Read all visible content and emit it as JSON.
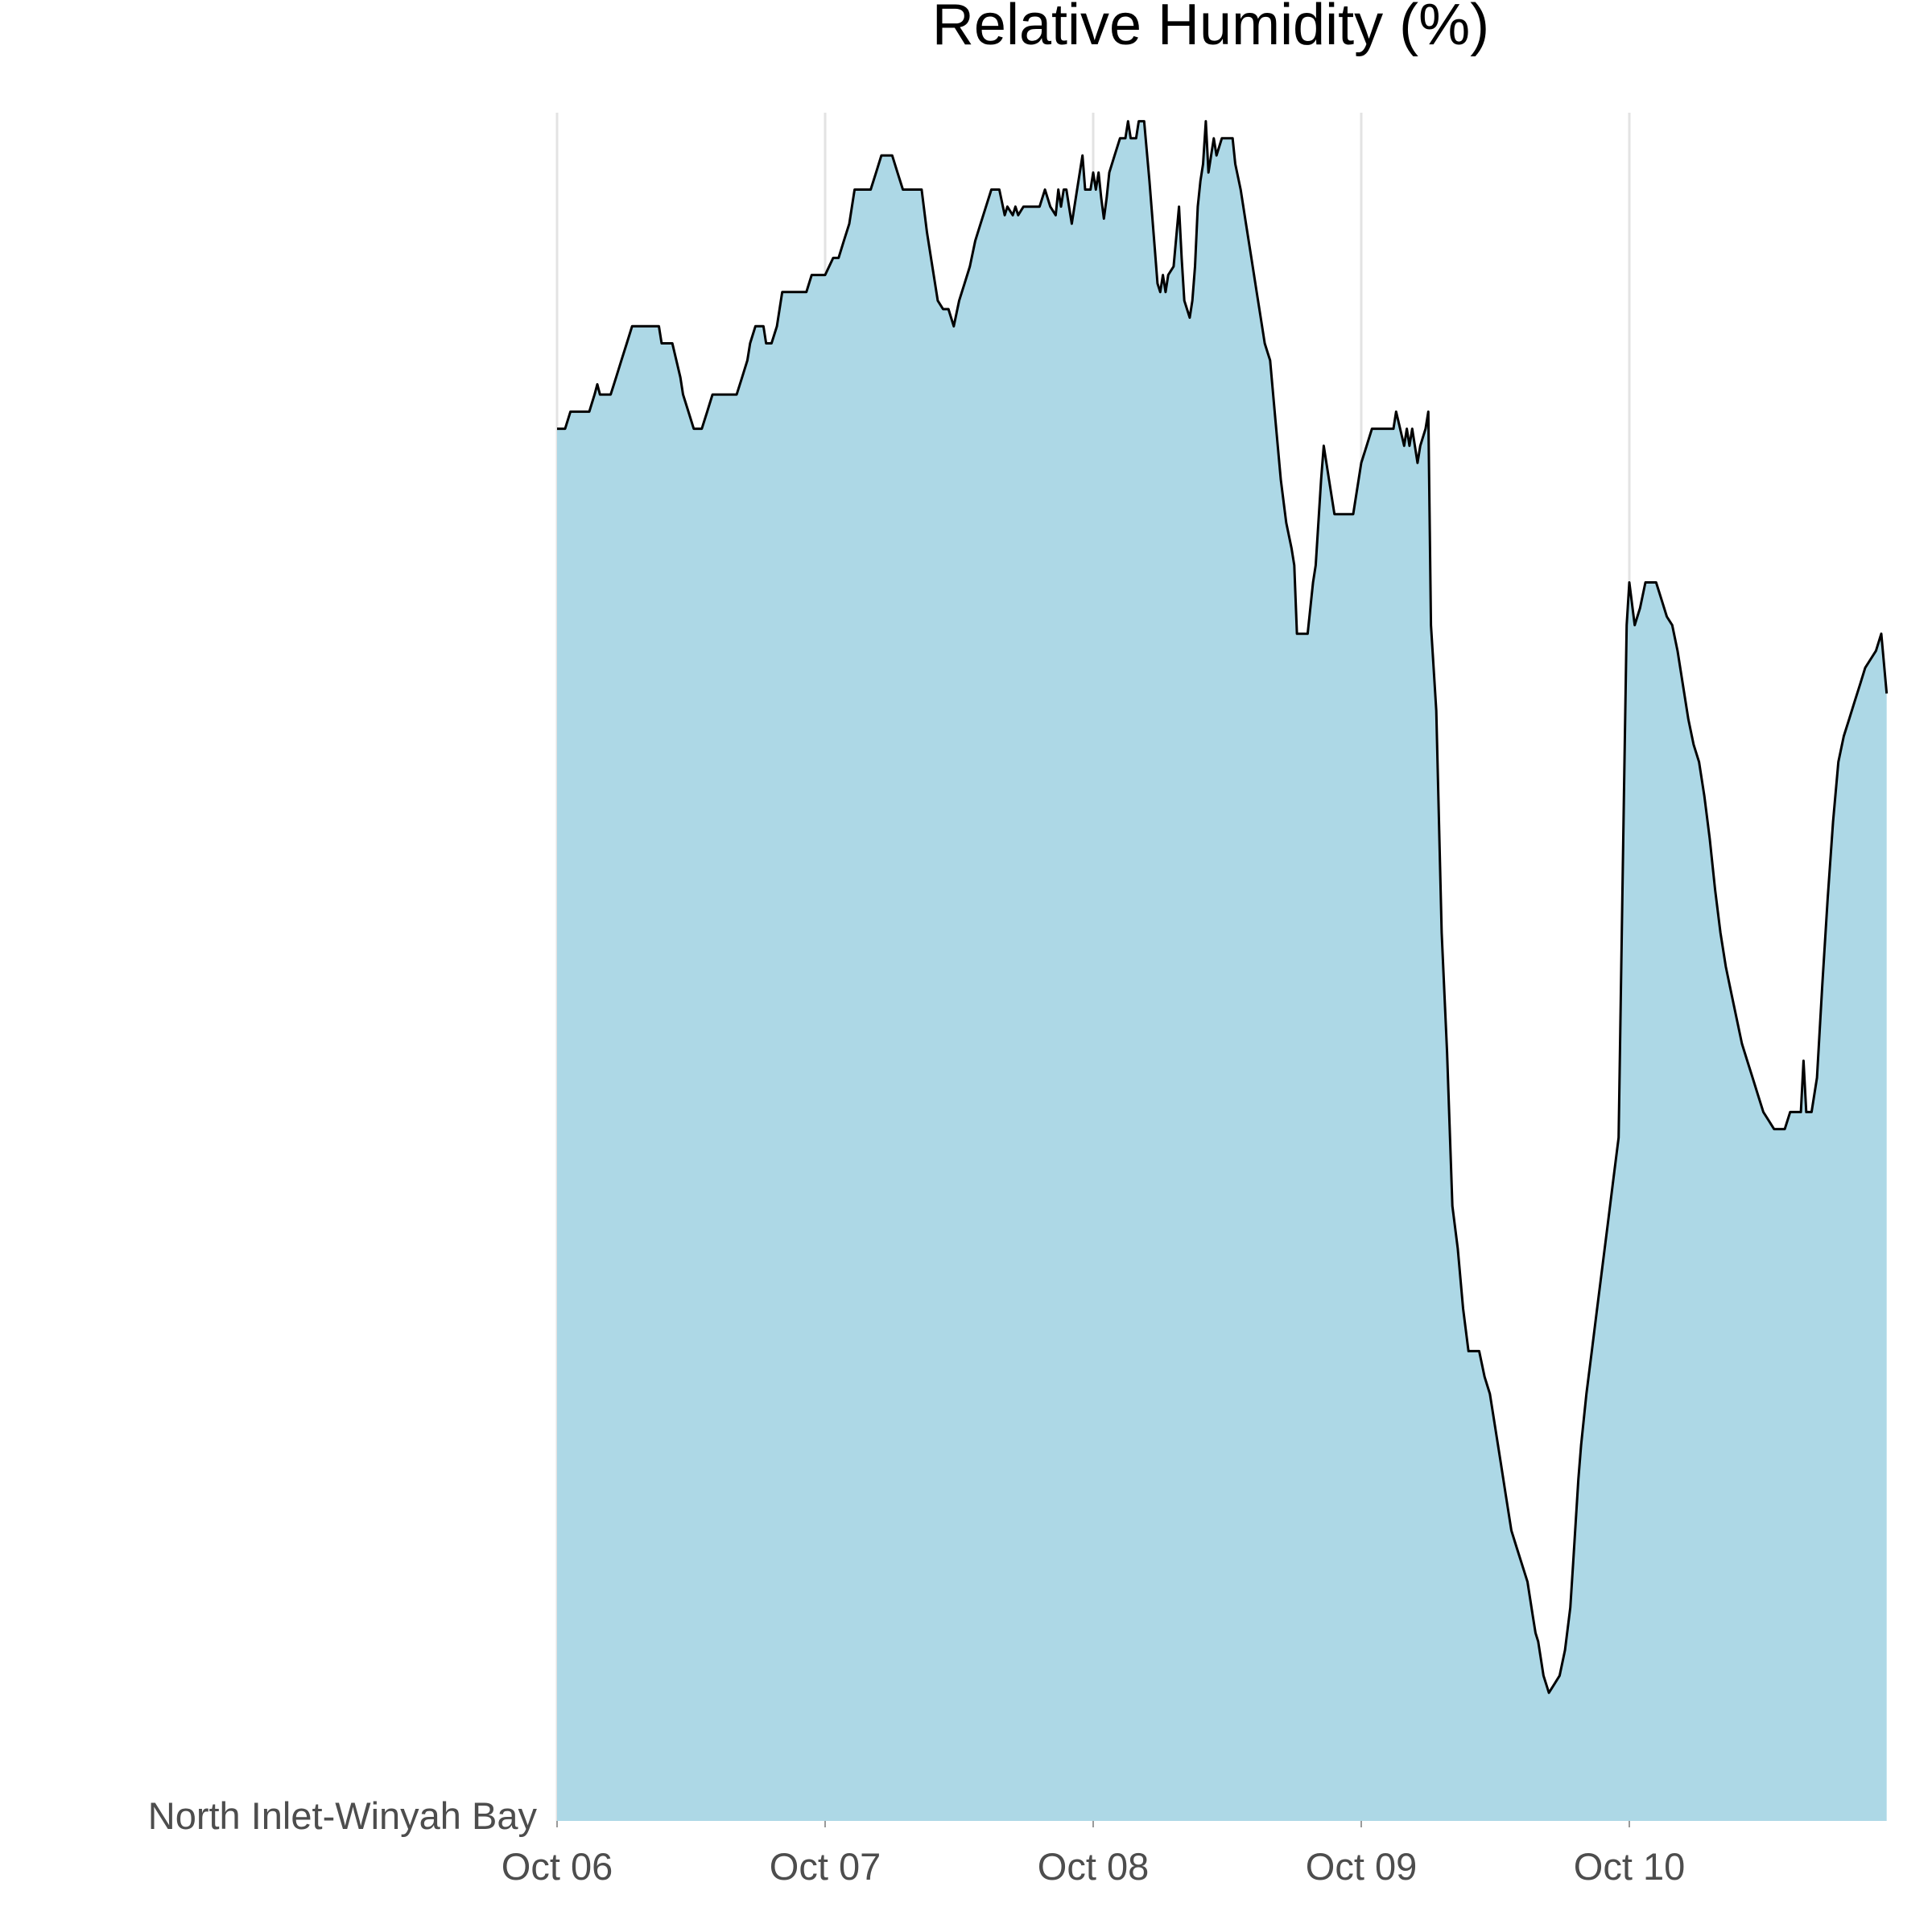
{
  "chart_data": {
    "type": "area",
    "title": "Relative Humidity (%)",
    "xlabel": "",
    "ylabel": "",
    "series_label": "North Inlet-Winyah Bay",
    "x_unit": "days since Oct 06 00:00",
    "x_range": [
      0,
      4.96
    ],
    "ylim": [
      0,
      100
    ],
    "grid": "vertical",
    "x_ticks": [
      {
        "value": 0,
        "label": "Oct 06"
      },
      {
        "value": 1,
        "label": "Oct 07"
      },
      {
        "value": 2,
        "label": "Oct 08"
      },
      {
        "value": 3,
        "label": "Oct 09"
      },
      {
        "value": 4,
        "label": "Oct 10"
      }
    ],
    "colors": {
      "fill": "#add8e6",
      "line": "#000000",
      "grid": "#e3e3e3"
    },
    "points": [
      [
        0.0,
        81.5
      ],
      [
        0.03,
        81.5
      ],
      [
        0.05,
        82.5
      ],
      [
        0.12,
        82.5
      ],
      [
        0.14,
        83.5
      ],
      [
        0.15,
        84.1
      ],
      [
        0.16,
        83.5
      ],
      [
        0.2,
        83.5
      ],
      [
        0.22,
        84.5
      ],
      [
        0.24,
        85.5
      ],
      [
        0.26,
        86.5
      ],
      [
        0.28,
        87.5
      ],
      [
        0.35,
        87.5
      ],
      [
        0.38,
        87.5
      ],
      [
        0.39,
        86.5
      ],
      [
        0.43,
        86.5
      ],
      [
        0.46,
        84.5
      ],
      [
        0.47,
        83.5
      ],
      [
        0.49,
        82.5
      ],
      [
        0.51,
        81.5
      ],
      [
        0.54,
        81.5
      ],
      [
        0.56,
        82.5
      ],
      [
        0.58,
        83.5
      ],
      [
        0.67,
        83.5
      ],
      [
        0.69,
        84.5
      ],
      [
        0.71,
        85.5
      ],
      [
        0.72,
        86.5
      ],
      [
        0.74,
        87.5
      ],
      [
        0.77,
        87.5
      ],
      [
        0.78,
        86.5
      ],
      [
        0.8,
        86.5
      ],
      [
        0.82,
        87.5
      ],
      [
        0.84,
        89.5
      ],
      [
        0.89,
        89.5
      ],
      [
        0.93,
        89.5
      ],
      [
        0.95,
        90.5
      ],
      [
        1.0,
        90.5
      ],
      [
        1.03,
        91.5
      ],
      [
        1.05,
        91.5
      ],
      [
        1.07,
        92.5
      ],
      [
        1.09,
        93.5
      ],
      [
        1.11,
        95.5
      ],
      [
        1.15,
        95.5
      ],
      [
        1.17,
        95.5
      ],
      [
        1.19,
        96.5
      ],
      [
        1.21,
        97.5
      ],
      [
        1.25,
        97.5
      ],
      [
        1.27,
        96.5
      ],
      [
        1.29,
        95.5
      ],
      [
        1.36,
        95.5
      ],
      [
        1.38,
        93.0
      ],
      [
        1.4,
        91.0
      ],
      [
        1.42,
        89.0
      ],
      [
        1.44,
        88.5
      ],
      [
        1.46,
        88.5
      ],
      [
        1.48,
        87.5
      ],
      [
        1.5,
        89.0
      ],
      [
        1.52,
        90.0
      ],
      [
        1.54,
        91.0
      ],
      [
        1.56,
        92.5
      ],
      [
        1.58,
        93.5
      ],
      [
        1.6,
        94.5
      ],
      [
        1.62,
        95.5
      ],
      [
        1.65,
        95.5
      ],
      [
        1.67,
        94.0
      ],
      [
        1.68,
        94.5
      ],
      [
        1.7,
        94.0
      ],
      [
        1.71,
        94.5
      ],
      [
        1.72,
        94.0
      ],
      [
        1.74,
        94.5
      ],
      [
        1.8,
        94.5
      ],
      [
        1.82,
        95.5
      ],
      [
        1.84,
        94.5
      ],
      [
        1.86,
        94.0
      ],
      [
        1.87,
        95.5
      ],
      [
        1.88,
        94.5
      ],
      [
        1.89,
        95.5
      ],
      [
        1.9,
        95.5
      ],
      [
        1.91,
        94.5
      ],
      [
        1.92,
        93.5
      ],
      [
        1.93,
        94.5
      ],
      [
        1.94,
        95.5
      ],
      [
        1.96,
        97.5
      ],
      [
        1.97,
        95.5
      ],
      [
        1.99,
        95.5
      ],
      [
        2.0,
        96.5
      ],
      [
        2.01,
        95.5
      ],
      [
        2.02,
        96.5
      ],
      [
        2.03,
        95.0
      ],
      [
        2.04,
        93.8
      ],
      [
        2.05,
        95.0
      ],
      [
        2.06,
        96.5
      ],
      [
        2.08,
        97.5
      ],
      [
        2.1,
        98.5
      ],
      [
        2.12,
        98.5
      ],
      [
        2.13,
        99.5
      ],
      [
        2.14,
        98.5
      ],
      [
        2.16,
        98.5
      ],
      [
        2.17,
        99.5
      ],
      [
        2.19,
        99.5
      ],
      [
        2.21,
        96.0
      ],
      [
        2.23,
        92.0
      ],
      [
        2.24,
        90.0
      ],
      [
        2.25,
        89.5
      ],
      [
        2.26,
        90.5
      ],
      [
        2.27,
        89.5
      ],
      [
        2.28,
        90.5
      ],
      [
        2.3,
        91.0
      ],
      [
        2.32,
        94.5
      ],
      [
        2.33,
        91.5
      ],
      [
        2.34,
        89.0
      ],
      [
        2.36,
        88.0
      ],
      [
        2.37,
        89.0
      ],
      [
        2.38,
        91.0
      ],
      [
        2.39,
        94.5
      ],
      [
        2.4,
        96.0
      ],
      [
        2.41,
        97.0
      ],
      [
        2.42,
        99.5
      ],
      [
        2.43,
        96.5
      ],
      [
        2.44,
        97.5
      ],
      [
        2.45,
        98.5
      ],
      [
        2.46,
        97.5
      ],
      [
        2.48,
        98.5
      ],
      [
        2.52,
        98.5
      ],
      [
        2.53,
        97.0
      ],
      [
        2.55,
        95.5
      ],
      [
        2.57,
        93.5
      ],
      [
        2.59,
        91.5
      ],
      [
        2.61,
        89.5
      ],
      [
        2.63,
        87.5
      ],
      [
        2.64,
        86.5
      ],
      [
        2.65,
        86.0
      ],
      [
        2.66,
        85.5
      ],
      [
        2.68,
        82.0
      ],
      [
        2.7,
        78.5
      ],
      [
        2.72,
        76.0
      ],
      [
        2.74,
        74.5
      ],
      [
        2.75,
        73.5
      ],
      [
        2.76,
        69.5
      ],
      [
        2.78,
        69.5
      ],
      [
        2.8,
        69.5
      ],
      [
        2.82,
        72.5
      ],
      [
        2.83,
        73.5
      ],
      [
        2.85,
        78.5
      ],
      [
        2.86,
        80.5
      ],
      [
        2.88,
        78.5
      ],
      [
        2.9,
        76.5
      ],
      [
        2.92,
        76.5
      ],
      [
        2.95,
        76.5
      ],
      [
        2.97,
        76.5
      ],
      [
        3.0,
        79.5
      ],
      [
        3.02,
        80.5
      ],
      [
        3.04,
        81.5
      ],
      [
        3.06,
        81.5
      ],
      [
        3.09,
        81.5
      ],
      [
        3.12,
        81.5
      ],
      [
        3.13,
        82.5
      ],
      [
        3.16,
        80.5
      ],
      [
        3.17,
        81.5
      ],
      [
        3.18,
        80.5
      ],
      [
        3.19,
        81.5
      ],
      [
        3.2,
        80.5
      ],
      [
        3.21,
        79.5
      ],
      [
        3.22,
        80.5
      ],
      [
        3.24,
        81.5
      ],
      [
        3.25,
        82.5
      ],
      [
        3.26,
        70.0
      ],
      [
        3.28,
        65.0
      ],
      [
        3.3,
        52.0
      ],
      [
        3.32,
        45.0
      ],
      [
        3.34,
        36.0
      ],
      [
        3.36,
        33.5
      ],
      [
        3.38,
        30.0
      ],
      [
        3.4,
        27.5
      ],
      [
        3.42,
        27.5
      ],
      [
        3.44,
        27.5
      ],
      [
        3.46,
        26.0
      ],
      [
        3.48,
        25.0
      ],
      [
        3.5,
        23.0
      ],
      [
        3.52,
        21.0
      ],
      [
        3.54,
        19.0
      ],
      [
        3.56,
        17.0
      ],
      [
        3.58,
        16.0
      ],
      [
        3.6,
        15.0
      ],
      [
        3.62,
        14.0
      ],
      [
        3.63,
        13.0
      ],
      [
        3.64,
        12.0
      ],
      [
        3.65,
        11.0
      ],
      [
        3.66,
        10.5
      ],
      [
        3.67,
        9.5
      ],
      [
        3.68,
        8.5
      ],
      [
        3.7,
        7.5
      ],
      [
        3.72,
        8.0
      ],
      [
        3.74,
        8.5
      ],
      [
        3.76,
        10.0
      ],
      [
        3.78,
        12.5
      ],
      [
        3.79,
        15.0
      ],
      [
        3.8,
        17.5
      ],
      [
        3.81,
        20.0
      ],
      [
        3.82,
        22.0
      ],
      [
        3.83,
        23.5
      ],
      [
        3.84,
        25.0
      ],
      [
        3.86,
        27.5
      ],
      [
        3.88,
        30.0
      ],
      [
        3.9,
        32.5
      ],
      [
        3.92,
        35.0
      ],
      [
        3.94,
        37.5
      ],
      [
        3.96,
        40.0
      ],
      [
        3.97,
        50.0
      ],
      [
        3.98,
        60.0
      ],
      [
        3.99,
        70.0
      ],
      [
        4.0,
        72.5
      ],
      [
        4.02,
        70.0
      ],
      [
        4.04,
        71.0
      ],
      [
        4.06,
        72.5
      ],
      [
        4.08,
        72.5
      ],
      [
        4.1,
        72.5
      ],
      [
        4.12,
        71.5
      ],
      [
        4.14,
        70.5
      ],
      [
        4.16,
        70.0
      ],
      [
        4.18,
        68.5
      ],
      [
        4.2,
        66.5
      ],
      [
        4.22,
        64.5
      ],
      [
        4.24,
        63.0
      ],
      [
        4.26,
        62.0
      ],
      [
        4.28,
        60.0
      ],
      [
        4.3,
        57.5
      ],
      [
        4.32,
        54.5
      ],
      [
        4.34,
        52.0
      ],
      [
        4.36,
        50.0
      ],
      [
        4.38,
        48.5
      ],
      [
        4.4,
        47.0
      ],
      [
        4.42,
        45.5
      ],
      [
        4.44,
        44.5
      ],
      [
        4.46,
        43.5
      ],
      [
        4.48,
        42.5
      ],
      [
        4.5,
        41.5
      ],
      [
        4.52,
        41.0
      ],
      [
        4.54,
        40.5
      ],
      [
        4.56,
        40.5
      ],
      [
        4.58,
        40.5
      ],
      [
        4.6,
        41.5
      ],
      [
        4.62,
        41.5
      ],
      [
        4.64,
        41.5
      ],
      [
        4.65,
        44.5
      ],
      [
        4.66,
        41.5
      ],
      [
        4.68,
        41.5
      ],
      [
        4.7,
        43.5
      ],
      [
        4.72,
        49.0
      ],
      [
        4.74,
        54.0
      ],
      [
        4.76,
        58.5
      ],
      [
        4.78,
        62.0
      ],
      [
        4.8,
        63.5
      ],
      [
        4.82,
        64.5
      ],
      [
        4.84,
        65.5
      ],
      [
        4.86,
        66.5
      ],
      [
        4.88,
        67.5
      ],
      [
        4.9,
        68.0
      ],
      [
        4.92,
        68.5
      ],
      [
        4.94,
        69.5
      ],
      [
        4.96,
        66.0
      ]
    ]
  }
}
